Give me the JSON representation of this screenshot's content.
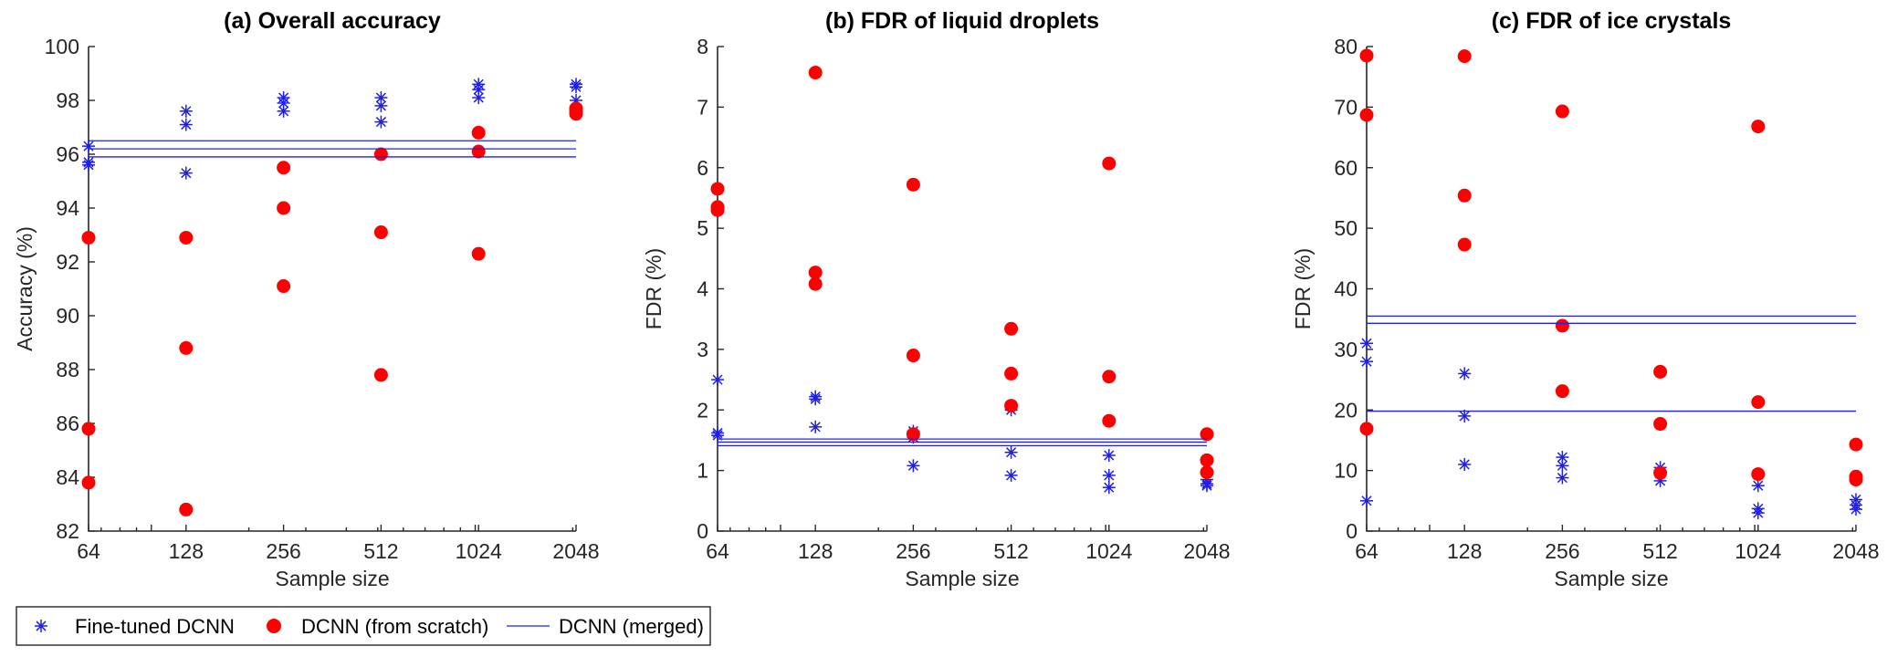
{
  "figure": {
    "legend": {
      "items": [
        {
          "label": "Fine-tuned DCNN",
          "marker": "asterisk",
          "color": "#1f1fe6"
        },
        {
          "label": "DCNN (from scratch)",
          "marker": "dot",
          "color": "#ff0000"
        },
        {
          "label": "DCNN (merged)",
          "marker": "line",
          "color": "#2020e6"
        }
      ]
    }
  },
  "chart_data": [
    {
      "type": "scatter",
      "title": "(a) Overall accuracy",
      "xlabel": "Sample size",
      "ylabel": "Accuracy (%)",
      "x_scale": "log2",
      "x_ticks": [
        64,
        128,
        256,
        512,
        1024,
        2048
      ],
      "xlim": [
        64,
        2048
      ],
      "ylim": [
        82,
        100
      ],
      "y_ticks": [
        82,
        84,
        86,
        88,
        90,
        92,
        94,
        96,
        98,
        100
      ],
      "grid": false,
      "series": [
        {
          "name": "Fine-tuned DCNN",
          "marker": "asterisk",
          "color": "#1f1fe6",
          "points": [
            [
              64,
              96.3
            ],
            [
              64,
              95.7
            ],
            [
              64,
              95.6
            ],
            [
              128,
              97.6
            ],
            [
              128,
              97.1
            ],
            [
              128,
              95.3
            ],
            [
              256,
              98.1
            ],
            [
              256,
              97.9
            ],
            [
              256,
              97.6
            ],
            [
              512,
              98.1
            ],
            [
              512,
              97.8
            ],
            [
              512,
              97.2
            ],
            [
              1024,
              98.6
            ],
            [
              1024,
              98.4
            ],
            [
              1024,
              98.1
            ],
            [
              2048,
              98.6
            ],
            [
              2048,
              98.5
            ],
            [
              2048,
              98.0
            ]
          ]
        },
        {
          "name": "DCNN (from scratch)",
          "marker": "dot",
          "color": "#ff0000",
          "points": [
            [
              64,
              92.9
            ],
            [
              64,
              85.8
            ],
            [
              64,
              83.8
            ],
            [
              128,
              92.9
            ],
            [
              128,
              88.8
            ],
            [
              128,
              82.8
            ],
            [
              256,
              95.5
            ],
            [
              256,
              94.0
            ],
            [
              256,
              91.1
            ],
            [
              512,
              96.0
            ],
            [
              512,
              93.1
            ],
            [
              512,
              87.8
            ],
            [
              1024,
              96.8
            ],
            [
              1024,
              96.1
            ],
            [
              1024,
              92.3
            ],
            [
              2048,
              97.7
            ],
            [
              2048,
              97.6
            ],
            [
              2048,
              97.5
            ]
          ]
        },
        {
          "name": "DCNN (merged)",
          "marker": "line",
          "color": "#2020e6",
          "hlines": [
            96.5,
            96.2,
            95.9
          ]
        }
      ]
    },
    {
      "type": "scatter",
      "title": "(b) FDR of liquid droplets",
      "xlabel": "Sample size",
      "ylabel": "FDR (%)",
      "x_scale": "log2",
      "x_ticks": [
        64,
        128,
        256,
        512,
        1024,
        2048
      ],
      "xlim": [
        64,
        2048
      ],
      "ylim": [
        0,
        8
      ],
      "y_ticks": [
        0,
        1,
        2,
        3,
        4,
        5,
        6,
        7,
        8
      ],
      "grid": false,
      "series": [
        {
          "name": "Fine-tuned DCNN",
          "marker": "asterisk",
          "color": "#1f1fe6",
          "points": [
            [
              64,
              2.5
            ],
            [
              64,
              1.62
            ],
            [
              64,
              1.58
            ],
            [
              128,
              2.22
            ],
            [
              128,
              2.18
            ],
            [
              128,
              1.72
            ],
            [
              256,
              1.65
            ],
            [
              256,
              1.55
            ],
            [
              256,
              1.08
            ],
            [
              512,
              2.0
            ],
            [
              512,
              1.3
            ],
            [
              512,
              0.92
            ],
            [
              1024,
              1.25
            ],
            [
              1024,
              0.92
            ],
            [
              1024,
              0.72
            ],
            [
              2048,
              0.85
            ],
            [
              2048,
              0.78
            ],
            [
              2048,
              0.75
            ]
          ]
        },
        {
          "name": "DCNN (from scratch)",
          "marker": "dot",
          "color": "#ff0000",
          "points": [
            [
              64,
              5.65
            ],
            [
              64,
              5.35
            ],
            [
              64,
              5.3
            ],
            [
              128,
              7.57
            ],
            [
              128,
              4.27
            ],
            [
              128,
              4.08
            ],
            [
              256,
              5.72
            ],
            [
              256,
              2.9
            ],
            [
              256,
              1.6
            ],
            [
              512,
              3.34
            ],
            [
              512,
              2.6
            ],
            [
              512,
              2.07
            ],
            [
              1024,
              6.07
            ],
            [
              1024,
              2.55
            ],
            [
              1024,
              1.82
            ],
            [
              2048,
              1.6
            ],
            [
              2048,
              1.17
            ],
            [
              2048,
              0.97
            ]
          ]
        },
        {
          "name": "DCNN (merged)",
          "marker": "line",
          "color": "#2020e6",
          "hlines": [
            1.52,
            1.47,
            1.41
          ]
        }
      ]
    },
    {
      "type": "scatter",
      "title": "(c) FDR of ice crystals",
      "xlabel": "Sample size",
      "ylabel": "FDR (%)",
      "x_scale": "log2",
      "x_ticks": [
        64,
        128,
        256,
        512,
        1024,
        2048
      ],
      "xlim": [
        64,
        2048
      ],
      "ylim": [
        0,
        80
      ],
      "y_ticks": [
        0,
        10,
        20,
        30,
        40,
        50,
        60,
        70,
        80
      ],
      "grid": false,
      "series": [
        {
          "name": "Fine-tuned DCNN",
          "marker": "asterisk",
          "color": "#1f1fe6",
          "points": [
            [
              64,
              31
            ],
            [
              64,
              28
            ],
            [
              64,
              5
            ],
            [
              128,
              26
            ],
            [
              128,
              19
            ],
            [
              128,
              11
            ],
            [
              256,
              12.2
            ],
            [
              256,
              10.8
            ],
            [
              256,
              8.8
            ],
            [
              512,
              10.5
            ],
            [
              512,
              9.5
            ],
            [
              512,
              8.3
            ],
            [
              1024,
              7.5
            ],
            [
              1024,
              3.7
            ],
            [
              1024,
              3.0
            ],
            [
              2048,
              5.2
            ],
            [
              2048,
              4.3
            ],
            [
              2048,
              3.6
            ]
          ]
        },
        {
          "name": "DCNN (from scratch)",
          "marker": "dot",
          "color": "#ff0000",
          "points": [
            [
              64,
              78.5
            ],
            [
              64,
              68.7
            ],
            [
              64,
              16.9
            ],
            [
              128,
              78.4
            ],
            [
              128,
              55.4
            ],
            [
              128,
              47.3
            ],
            [
              256,
              69.3
            ],
            [
              256,
              33.9
            ],
            [
              256,
              23.1
            ],
            [
              512,
              26.3
            ],
            [
              512,
              17.7
            ],
            [
              512,
              9.6
            ],
            [
              1024,
              66.8
            ],
            [
              1024,
              21.3
            ],
            [
              1024,
              9.4
            ],
            [
              2048,
              14.3
            ],
            [
              2048,
              9.0
            ],
            [
              2048,
              8.5
            ]
          ]
        },
        {
          "name": "DCNN (merged)",
          "marker": "line",
          "color": "#2020e6",
          "hlines": [
            35.5,
            34.3,
            19.8
          ]
        }
      ]
    }
  ]
}
